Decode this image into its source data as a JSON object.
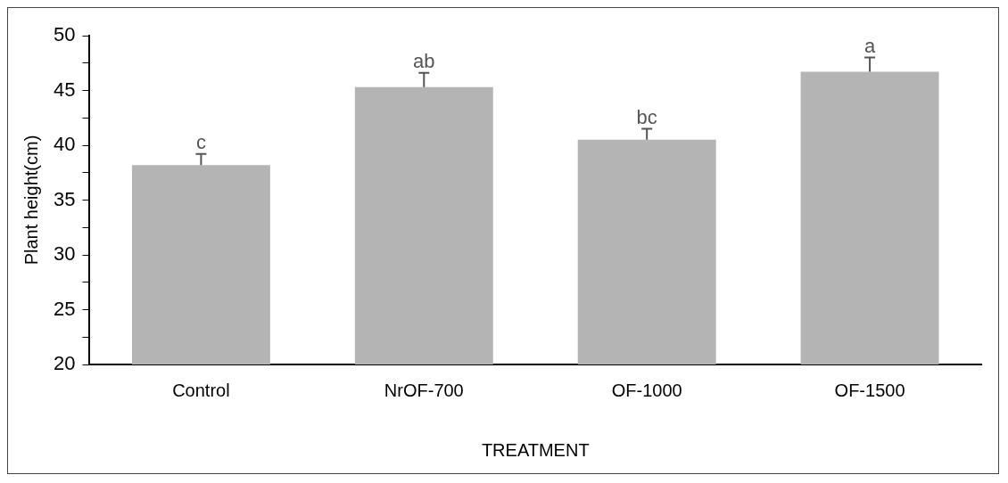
{
  "chart_data": {
    "type": "bar",
    "xlabel": "TREATMENT",
    "ylabel": "Plant height(cm)",
    "categories": [
      "Control",
      "NrOF-700",
      "OF-1000",
      "OF-1500"
    ],
    "values": [
      38.2,
      45.3,
      40.5,
      46.7
    ],
    "errors": [
      1.0,
      1.3,
      1.0,
      1.3
    ],
    "color": "#b4b4b4",
    "ylim": [
      20,
      50
    ],
    "yticks": [
      20,
      {
        "value": 22.5,
        "label": null
      },
      25,
      {
        "value": 27.5,
        "label": null
      },
      30,
      {
        "value": 32.5,
        "label": null
      },
      35,
      {
        "value": 37.5,
        "label": null
      },
      40,
      {
        "value": 42.5,
        "label": null
      },
      45,
      {
        "value": 47.5,
        "label": null
      },
      50
    ],
    "annotations": [
      {
        "text": "c",
        "x": "Control",
        "y": 39.2
      },
      {
        "text": "ab",
        "x": "NrOF-700",
        "y": 46.6
      },
      {
        "text": "bc",
        "x": "OF-1000",
        "y": 41.5
      },
      {
        "text": "a",
        "x": "OF-1500",
        "y": 48.0
      }
    ],
    "grid": false,
    "legend": false
  }
}
